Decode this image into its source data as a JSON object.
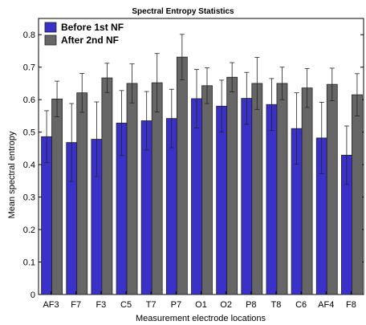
{
  "chart_data": {
    "type": "bar",
    "title": "Spectral Entropy Statistics",
    "xlabel": "Measurement electrode locations",
    "ylabel": "Mean spectral entropy",
    "categories": [
      "AF3",
      "F7",
      "F3",
      "C5",
      "T7",
      "P7",
      "O1",
      "O2",
      "P8",
      "T8",
      "C6",
      "AF4",
      "F8"
    ],
    "ylim": [
      0,
      0.85
    ],
    "yticks": [
      "0",
      "0.1",
      "0.2",
      "0.3",
      "0.4",
      "0.5",
      "0.6",
      "0.7",
      "0.8"
    ],
    "legend_position": "top-left",
    "grid": false,
    "series": [
      {
        "name": "Before 1st NF",
        "color": "#3a32c8",
        "values": [
          0.486,
          0.468,
          0.478,
          0.528,
          0.535,
          0.542,
          0.603,
          0.58,
          0.604,
          0.585,
          0.511,
          0.482,
          0.429
        ],
        "errors": [
          0.08,
          0.12,
          0.115,
          0.1,
          0.09,
          0.09,
          0.09,
          0.08,
          0.08,
          0.08,
          0.11,
          0.11,
          0.09
        ]
      },
      {
        "name": "After 2nd NF",
        "color": "#666666",
        "values": [
          0.602,
          0.621,
          0.667,
          0.65,
          0.652,
          0.731,
          0.643,
          0.669,
          0.65,
          0.65,
          0.636,
          0.647,
          0.615
        ],
        "errors": [
          0.055,
          0.06,
          0.045,
          0.06,
          0.09,
          0.07,
          0.055,
          0.045,
          0.08,
          0.05,
          0.06,
          0.05,
          0.065
        ]
      }
    ]
  }
}
